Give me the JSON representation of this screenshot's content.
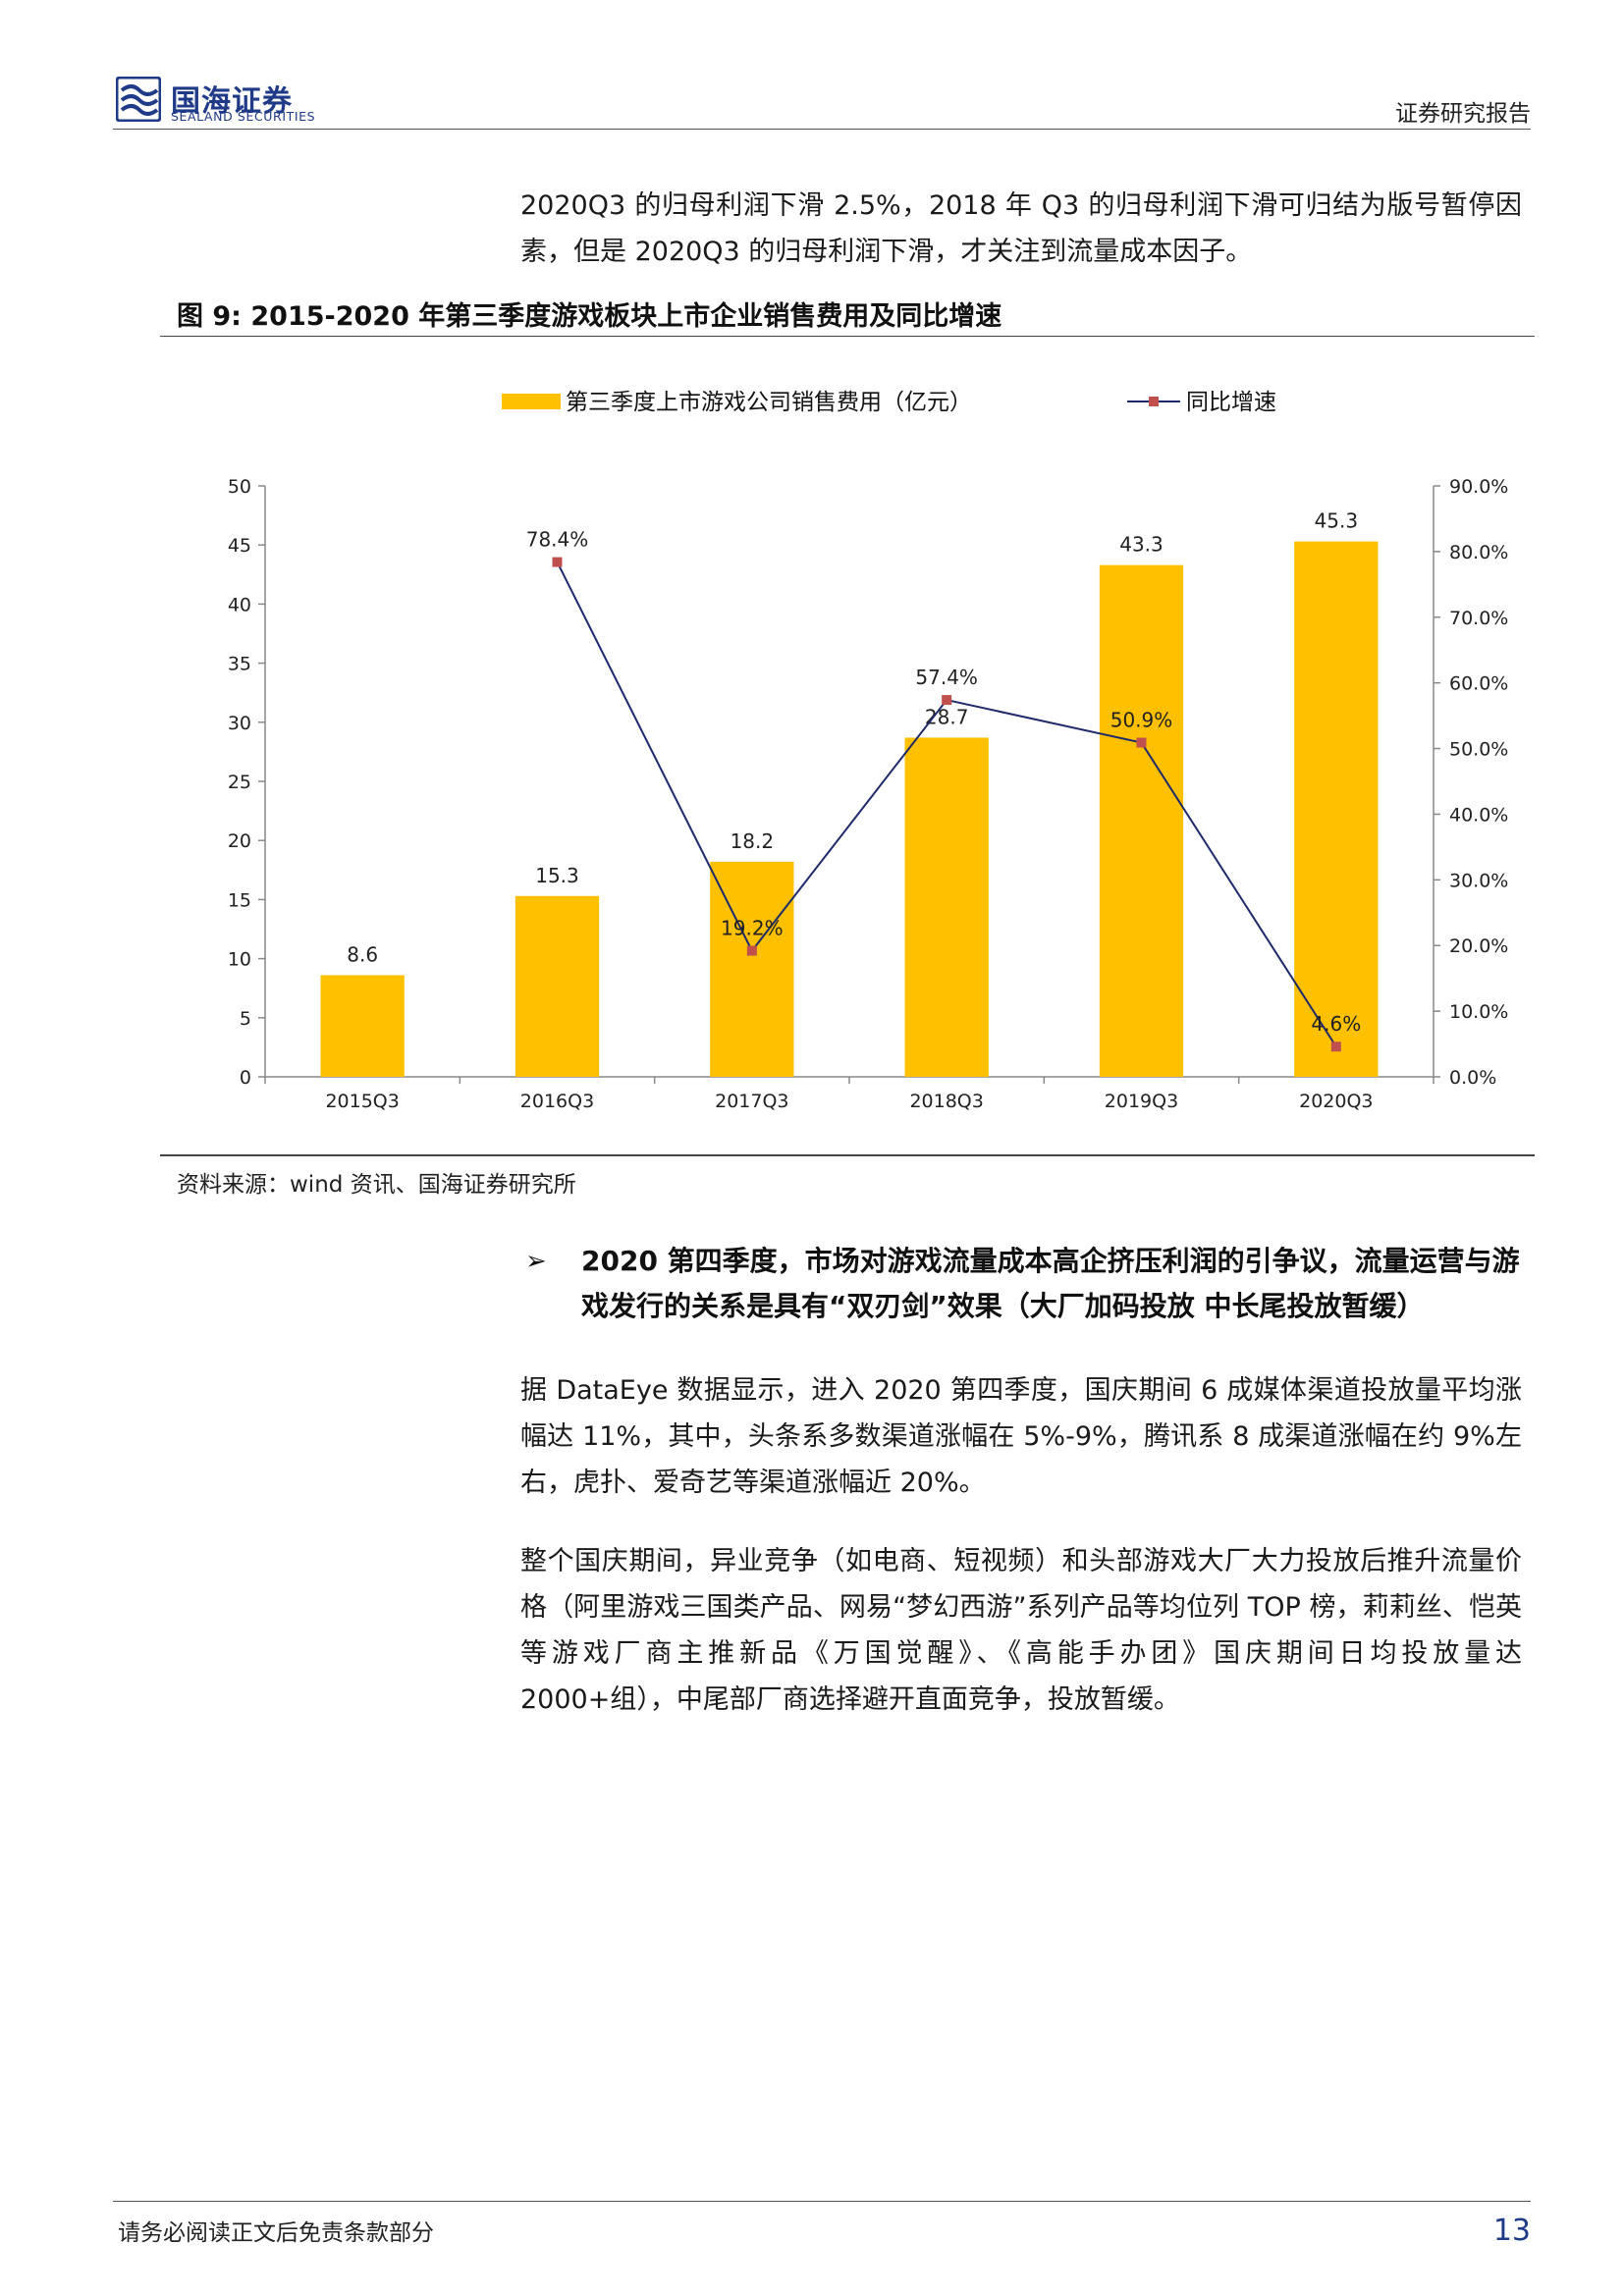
{
  "header": {
    "logo_cn": "国海证券",
    "logo_en": "SEALAND SECURITIES",
    "report_label": "证券研究报告"
  },
  "intro": "2020Q3 的归母利润下滑 2.5%，2018 年 Q3 的归母利润下滑可归结为版号暂停因素，但是 2020Q3 的归母利润下滑，才关注到流量成本因子。",
  "figure": {
    "title": "图 9:  2015-2020 年第三季度游戏板块上市企业销售费用及同比增速",
    "source": "资料来源：wind 资讯、国海证券研究所"
  },
  "chart_data": {
    "type": "bar+line",
    "categories": [
      "2015Q3",
      "2016Q3",
      "2017Q3",
      "2018Q3",
      "2019Q3",
      "2020Q3"
    ],
    "series": [
      {
        "name": "第三季度上市游戏公司销售费用（亿元）",
        "type": "bar",
        "axis": "left",
        "color": "#FFC000",
        "values": [
          8.6,
          15.3,
          18.2,
          28.7,
          43.3,
          45.3
        ],
        "labels": [
          "8.6",
          "15.3",
          "18.2",
          "28.7",
          "43.3",
          "45.3"
        ]
      },
      {
        "name": "同比增速",
        "type": "line",
        "axis": "right",
        "color": "#1F2A6B",
        "marker_color": "#C0504D",
        "values": [
          null,
          78.4,
          19.2,
          57.4,
          50.9,
          4.6
        ],
        "labels": [
          "",
          "78.4%",
          "19.2%",
          "57.4%",
          "50.9%",
          "4.6%"
        ]
      }
    ],
    "y_left": {
      "min": 0,
      "max": 50,
      "ticks": [
        "0",
        "5",
        "10",
        "15",
        "20",
        "25",
        "30",
        "35",
        "40",
        "45",
        "50"
      ]
    },
    "y_right": {
      "min": 0,
      "max": 90,
      "ticks": [
        "0.0%",
        "10.0%",
        "20.0%",
        "30.0%",
        "40.0%",
        "50.0%",
        "60.0%",
        "70.0%",
        "80.0%",
        "90.0%"
      ]
    },
    "legend_position": "top",
    "grid": false
  },
  "bullet": {
    "marker": "➢",
    "text": "2020 第四季度，市场对游戏流量成本高企挤压利润的引争议，流量运营与游戏发行的关系是具有“双刃剑”效果（大厂加码投放 中长尾投放暂缓）"
  },
  "para2": "据 DataEye 数据显示，进入 2020 第四季度，国庆期间 6 成媒体渠道投放量平均涨幅达 11%，其中，头条系多数渠道涨幅在 5%-9%，腾讯系 8 成渠道涨幅在约 9%左右，虎扑、爱奇艺等渠道涨幅近 20%。",
  "para3": "整个国庆期间，异业竞争（如电商、短视频）和头部游戏大厂大力投放后推升流量价格（阿里游戏三国类产品、网易“梦幻西游”系列产品等均位列 TOP 榜，莉莉丝、恺英等游戏厂商主推新品《万国觉醒》、《高能手办团》国庆期间日均投放量达 2000+组），中尾部厂商选择避开直面竞争，投放暂缓。",
  "footer": {
    "note": "请务必阅读正文后免责条款部分",
    "page": "13"
  }
}
